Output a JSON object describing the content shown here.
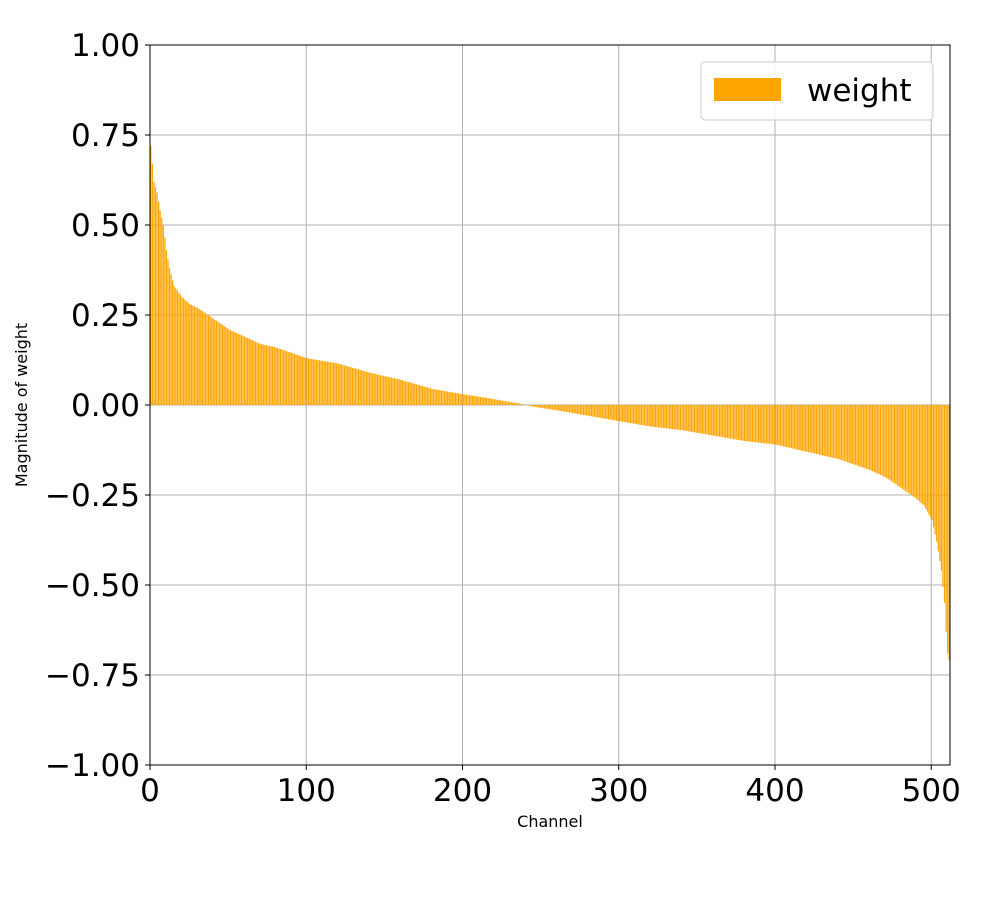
{
  "chart_data": {
    "type": "bar",
    "title": "",
    "xlabel": "Channel",
    "ylabel": "Magnitude of weight",
    "xlim": [
      0,
      512
    ],
    "ylim": [
      -1.0,
      1.0
    ],
    "x_ticks": [
      0,
      100,
      200,
      300,
      400,
      500
    ],
    "x_tick_labels": [
      "0",
      "100",
      "200",
      "300",
      "400",
      "500"
    ],
    "y_ticks": [
      1.0,
      0.75,
      0.5,
      0.25,
      0.0,
      -0.25,
      -0.5,
      -0.75,
      -1.0
    ],
    "y_tick_labels": [
      "1.00",
      "0.75",
      "0.50",
      "0.25",
      "0.00",
      "−0.25",
      "−0.50",
      "−0.75",
      "−1.00"
    ],
    "grid": true,
    "legend_position": "top-right",
    "bar_count": 512,
    "series": [
      {
        "name": "weight",
        "color": "#ffa500",
        "profile": {
          "x": [
            0,
            2,
            4,
            6,
            8,
            10,
            12,
            15,
            20,
            25,
            30,
            40,
            50,
            60,
            70,
            80,
            90,
            100,
            120,
            140,
            160,
            180,
            200,
            215,
            225,
            235,
            245,
            260,
            280,
            300,
            320,
            340,
            360,
            380,
            400,
            420,
            440,
            460,
            470,
            480,
            490,
            495,
            500,
            503,
            506,
            508,
            509,
            510,
            511
          ],
          "y": [
            0.72,
            0.62,
            0.59,
            0.54,
            0.5,
            0.43,
            0.38,
            0.33,
            0.3,
            0.28,
            0.27,
            0.24,
            0.21,
            0.19,
            0.17,
            0.16,
            0.145,
            0.13,
            0.115,
            0.09,
            0.07,
            0.045,
            0.03,
            0.02,
            0.012,
            0.005,
            -0.005,
            -0.015,
            -0.03,
            -0.045,
            -0.06,
            -0.07,
            -0.085,
            -0.1,
            -0.11,
            -0.13,
            -0.15,
            -0.18,
            -0.2,
            -0.23,
            -0.26,
            -0.28,
            -0.32,
            -0.38,
            -0.46,
            -0.55,
            -0.63,
            -0.69,
            -0.71
          ]
        }
      }
    ]
  }
}
